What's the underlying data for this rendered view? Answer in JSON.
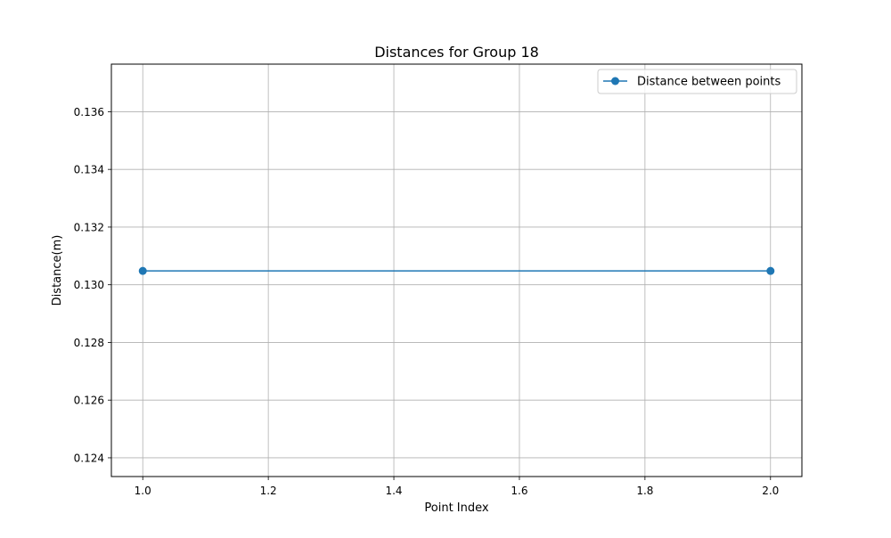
{
  "chart_data": {
    "type": "line",
    "title": "Distances for Group 18",
    "xlabel": "Point Index",
    "ylabel": "Distance(m)",
    "xlim": [
      0.95,
      2.05
    ],
    "ylim": [
      0.12335,
      0.13765
    ],
    "x_ticks": [
      1.0,
      1.2,
      1.4,
      1.6,
      1.8,
      2.0
    ],
    "x_tick_labels": [
      "1.0",
      "1.2",
      "1.4",
      "1.6",
      "1.8",
      "2.0"
    ],
    "y_ticks": [
      0.124,
      0.126,
      0.128,
      0.13,
      0.132,
      0.134,
      0.136
    ],
    "y_tick_labels": [
      "0.124",
      "0.126",
      "0.128",
      "0.130",
      "0.132",
      "0.134",
      "0.136"
    ],
    "grid": true,
    "legend_position": "top-right",
    "series": [
      {
        "name": "Distance between points",
        "marker": "circle",
        "color": "#1f77b4",
        "x": [
          1,
          2
        ],
        "y": [
          0.13048,
          0.13048
        ]
      }
    ]
  }
}
